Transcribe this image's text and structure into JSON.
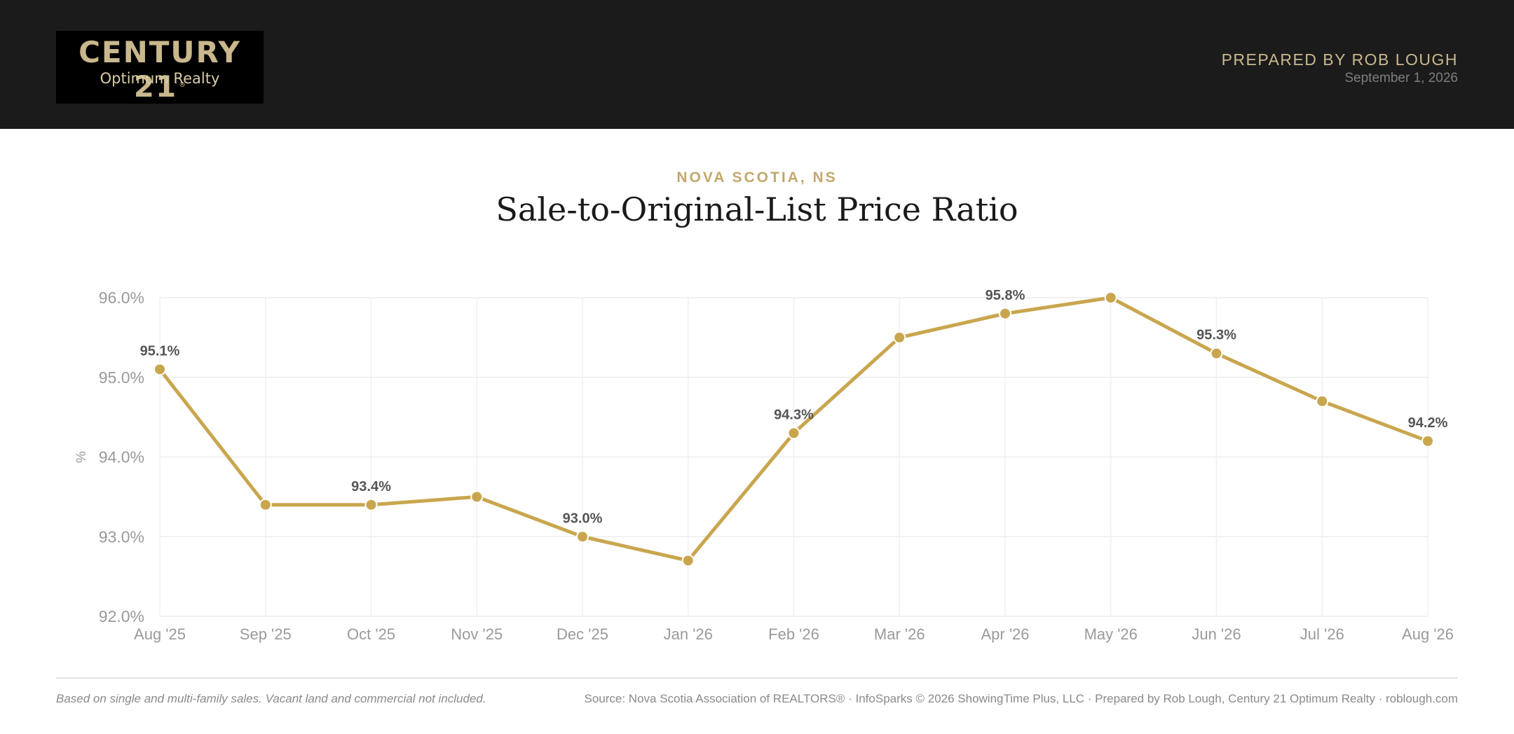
{
  "header": {
    "logo_main": "CENTURY 21",
    "logo_reg": "®",
    "logo_sub": "Optimum Realty",
    "prepared_by": "PREPARED BY ROB LOUGH",
    "date": "September 1, 2026"
  },
  "region": "NOVA SCOTIA, NS",
  "title": "Sale-to-Original-List Price Ratio",
  "chart_data": {
    "type": "line",
    "categories": [
      "Aug '25",
      "Sep '25",
      "Oct '25",
      "Nov '25",
      "Dec '25",
      "Jan '26",
      "Feb '26",
      "Mar '26",
      "Apr '26",
      "May '26",
      "Jun '26",
      "Jul '26",
      "Aug '26"
    ],
    "values": [
      95.1,
      93.4,
      93.4,
      93.5,
      93.0,
      92.7,
      94.3,
      95.5,
      95.8,
      96.0,
      95.3,
      94.7,
      94.2
    ],
    "labels": [
      "95.1%",
      "",
      "93.4%",
      "",
      "93.0%",
      "",
      "94.3%",
      "",
      "95.8%",
      "",
      "95.3%",
      "",
      "94.2%"
    ],
    "ylabel": "%",
    "yticks": [
      "92.0%",
      "93.0%",
      "94.0%",
      "95.0%",
      "96.0%"
    ],
    "ytick_values": [
      92,
      93,
      94,
      95,
      96
    ],
    "ylim": [
      92,
      96
    ],
    "grid": true,
    "color": "#c9a64e"
  },
  "footer": {
    "note": "Based on single and multi-family sales. Vacant land and commercial not included.",
    "source": "Source: Nova Scotia Association of REALTORS® · InfoSparks © 2026 ShowingTime Plus, LLC · Prepared by Rob Lough, Century 21 Optimum Realty · roblough.com"
  }
}
